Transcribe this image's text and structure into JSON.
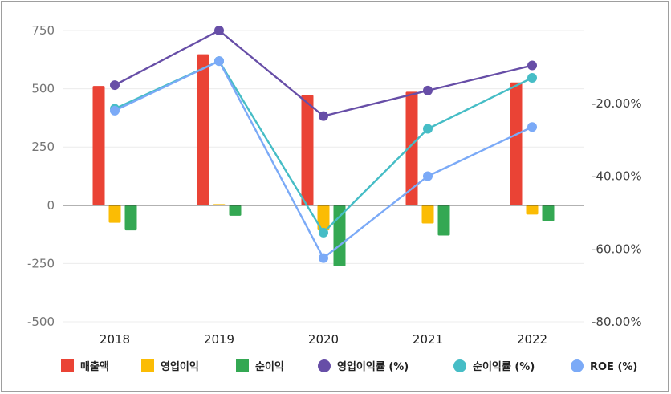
{
  "chart_data": {
    "type": "bar",
    "categories": [
      "2018",
      "2019",
      "2020",
      "2021",
      "2022"
    ],
    "bar_series": [
      {
        "name": "매출액",
        "color": "#ea4335",
        "values": [
          512,
          648,
          473,
          487,
          527
        ]
      },
      {
        "name": "영업이익",
        "color": "#fbbc04",
        "values": [
          -75,
          5,
          -108,
          -78,
          -40
        ]
      },
      {
        "name": "순이익",
        "color": "#34a853",
        "values": [
          -108,
          -45,
          -262,
          -130,
          -68
        ]
      }
    ],
    "line_series": [
      {
        "name": "영업이익률 (%)",
        "color": "#674ea7",
        "values": [
          -15,
          0,
          -23.5,
          -16.5,
          -9.6
        ]
      },
      {
        "name": "순이익률 (%)",
        "color": "#46bdc6",
        "values": [
          -21.5,
          -8.4,
          -55.5,
          -27,
          -13
        ]
      },
      {
        "name": "ROE (%)",
        "color": "#7baaf7",
        "values": [
          -22,
          -8.4,
          -62.5,
          -40,
          -26.5
        ]
      }
    ],
    "y_left": {
      "min": -500,
      "max": 750,
      "ticks": [
        "750",
        "500",
        "250",
        "0",
        "-250",
        "-500"
      ]
    },
    "y_right": {
      "min": -80,
      "max": 0,
      "ticks": [
        "-20.00%",
        "-40.00%",
        "-60.00%",
        "-80.00%"
      ]
    },
    "grid": true,
    "legend_position": "bottom"
  },
  "legend": [
    {
      "label": "매출액",
      "shape": "square",
      "color": "#ea4335"
    },
    {
      "label": "영업이익",
      "shape": "square",
      "color": "#fbbc04"
    },
    {
      "label": "순이익",
      "shape": "square",
      "color": "#34a853"
    },
    {
      "label": "영업이익률 (%)",
      "shape": "circle",
      "color": "#674ea7"
    },
    {
      "label": "순이익률 (%)",
      "shape": "circle",
      "color": "#46bdc6"
    },
    {
      "label": "ROE (%)",
      "shape": "circle",
      "color": "#7baaf7"
    }
  ]
}
